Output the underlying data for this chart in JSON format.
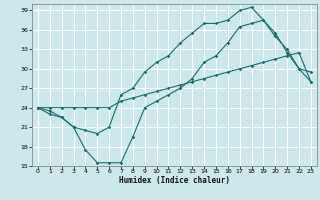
{
  "title": "",
  "xlabel": "Humidex (Indice chaleur)",
  "ylabel": "",
  "bg_color": "#cce8ea",
  "grid_color": "#ffffff",
  "line_color": "#1a6b6b",
  "xlim": [
    -0.5,
    23.5
  ],
  "ylim": [
    15,
    40
  ],
  "yticks": [
    15,
    18,
    21,
    24,
    27,
    30,
    33,
    36,
    39
  ],
  "xticks": [
    0,
    1,
    2,
    3,
    4,
    5,
    6,
    7,
    8,
    9,
    10,
    11,
    12,
    13,
    14,
    15,
    16,
    17,
    18,
    19,
    20,
    21,
    22,
    23
  ],
  "line1_x": [
    0,
    1,
    2,
    3,
    4,
    5,
    6,
    7,
    8,
    9,
    10,
    11,
    12,
    13,
    14,
    15,
    16,
    17,
    18,
    19,
    20,
    21,
    22,
    23
  ],
  "line1_y": [
    24,
    23,
    22.5,
    21,
    17.5,
    15.5,
    15.5,
    15.5,
    19.5,
    24,
    25,
    26,
    27,
    28.5,
    31,
    32,
    34,
    36.5,
    37,
    37.5,
    35,
    33,
    30,
    29.5
  ],
  "line2_x": [
    0,
    1,
    2,
    3,
    4,
    5,
    6,
    7,
    8,
    9,
    10,
    11,
    12,
    13,
    14,
    15,
    16,
    17,
    18,
    19,
    20,
    21,
    22,
    23
  ],
  "line2_y": [
    24,
    24,
    24,
    24,
    24,
    24,
    24,
    25,
    25.5,
    26,
    26.5,
    27,
    27.5,
    28,
    28.5,
    29,
    29.5,
    30,
    30.5,
    31,
    31.5,
    32,
    32.5,
    28
  ],
  "line3_x": [
    0,
    1,
    2,
    3,
    4,
    5,
    6,
    7,
    8,
    9,
    10,
    11,
    12,
    13,
    14,
    15,
    16,
    17,
    18,
    19,
    20,
    21,
    22,
    23
  ],
  "line3_y": [
    24,
    23.5,
    22.5,
    21,
    20.5,
    20,
    21,
    26,
    27,
    29.5,
    31,
    32,
    34,
    35.5,
    37,
    37,
    37.5,
    39,
    39.5,
    37.5,
    35.5,
    32.5,
    30,
    28
  ]
}
